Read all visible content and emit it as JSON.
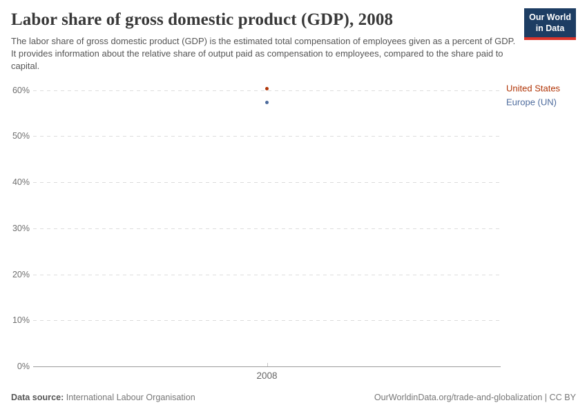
{
  "header": {
    "title": "Labor share of gross domestic product (GDP), 2008",
    "subtitle": "The labor share of gross domestic product (GDP) is the estimated total compensation of employees given as a percent of GDP. It provides information about the relative share of output paid as compensation to employees, compared to the share paid to capital.",
    "logo": {
      "line1": "Our World",
      "line2": "in Data",
      "background": "#1d3d63",
      "accent": "#dc352b"
    }
  },
  "chart_data": {
    "type": "scatter",
    "x": [
      2008
    ],
    "xticks": [
      "2008"
    ],
    "series": [
      {
        "name": "United States",
        "values": [
          60.4
        ],
        "color": "#b13507"
      },
      {
        "name": "Europe (UN)",
        "values": [
          57.4
        ],
        "color": "#4c6a9c"
      }
    ],
    "title": "Labor share of gross domestic product (GDP), 2008",
    "xlabel": "",
    "ylabel": "",
    "ylim": [
      0,
      60
    ],
    "yticks": [
      0,
      10,
      20,
      30,
      40,
      50,
      60
    ],
    "ytick_format": "{}%",
    "grid": "horizontal-dashed",
    "legend_position": "right",
    "gridline_color": "#dcdcdc",
    "axis_color": "#9a9a9a"
  },
  "footer": {
    "source_label": "Data source:",
    "source_value": "International Labour Organisation",
    "credit": "OurWorldinData.org/trade-and-globalization | CC BY"
  }
}
